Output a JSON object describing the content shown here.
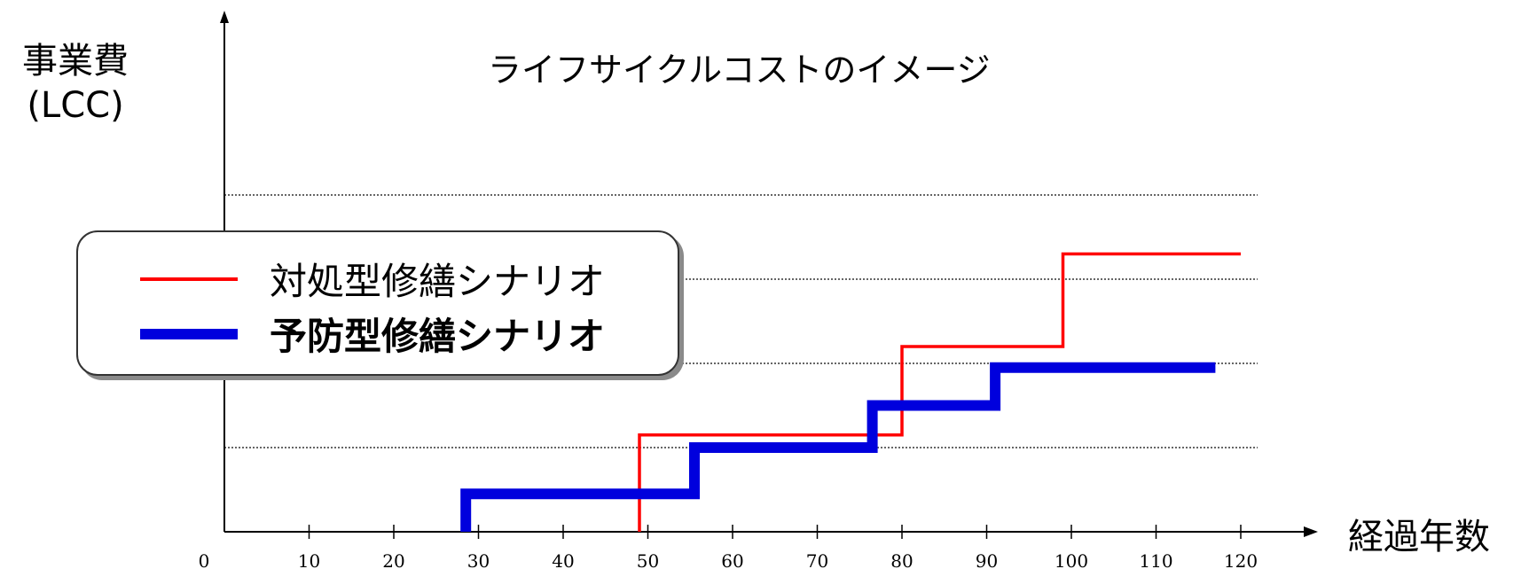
{
  "chart_data": {
    "type": "line",
    "title": "ライフサイクルコストのイメージ",
    "ylabel": [
      "事業費",
      "(LCC)"
    ],
    "xlabel": "経過年数",
    "xlim": [
      0,
      125
    ],
    "ylim": [
      0,
      6.2
    ],
    "x_ticks": [
      0,
      10,
      20,
      30,
      40,
      50,
      60,
      70,
      80,
      90,
      100,
      110,
      120
    ],
    "gridlines_y": [
      1,
      2,
      3,
      4
    ],
    "grid": "horizontal dotted",
    "legend_position": "upper-left",
    "series": [
      {
        "name": "対処型修繕シナリオ",
        "color": "#ff0000",
        "style": "thin",
        "points": [
          [
            49,
            0
          ],
          [
            49,
            1.15
          ],
          [
            80,
            1.15
          ],
          [
            80,
            2.2
          ],
          [
            99,
            2.2
          ],
          [
            99,
            3.3
          ],
          [
            120,
            3.3
          ]
        ]
      },
      {
        "name": "予防型修繕シナリオ",
        "color": "#0000dd",
        "style": "thick",
        "points": [
          [
            28.5,
            0
          ],
          [
            28.5,
            0.45
          ],
          [
            55.5,
            0.45
          ],
          [
            55.5,
            1.0
          ],
          [
            76.5,
            1.0
          ],
          [
            76.5,
            1.5
          ],
          [
            91,
            1.5
          ],
          [
            91,
            1.95
          ],
          [
            117,
            1.95
          ]
        ]
      }
    ]
  }
}
